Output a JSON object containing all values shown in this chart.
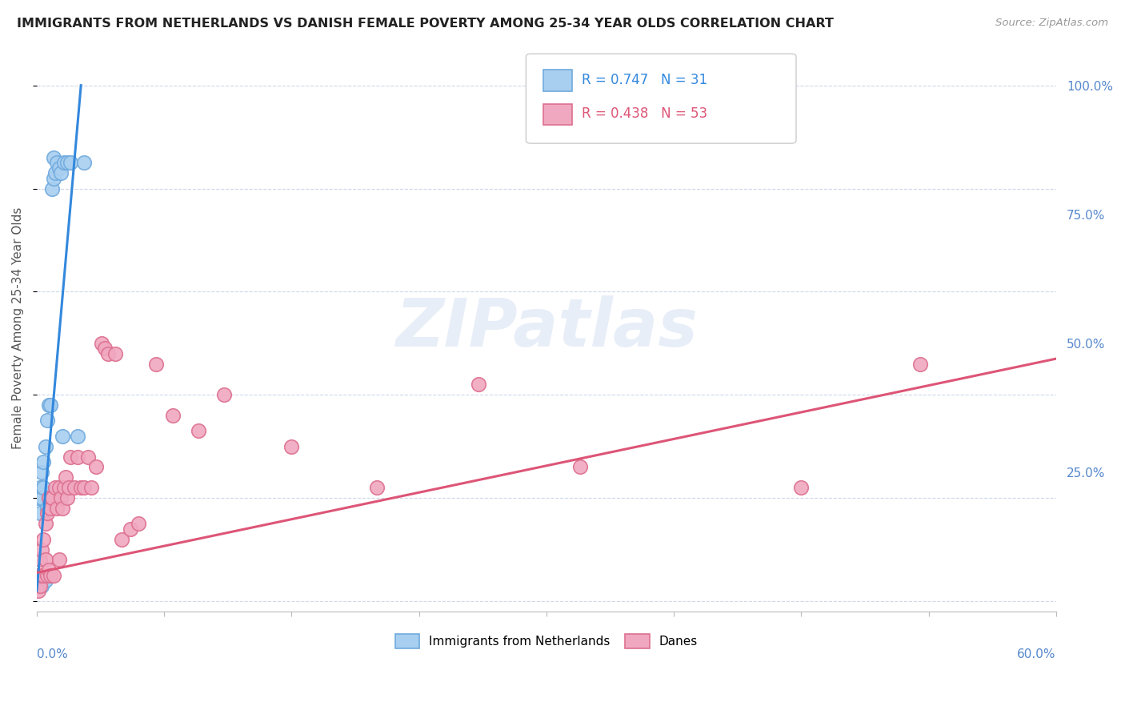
{
  "title": "IMMIGRANTS FROM NETHERLANDS VS DANISH FEMALE POVERTY AMONG 25-34 YEAR OLDS CORRELATION CHART",
  "source": "Source: ZipAtlas.com",
  "ylabel": "Female Poverty Among 25-34 Year Olds",
  "color_blue": "#a8cff0",
  "color_pink": "#f0a8c0",
  "color_blue_edge": "#70aadd",
  "color_pink_edge": "#dd7090",
  "color_blue_line": "#3388dd",
  "color_pink_line": "#dd5577",
  "watermark_color": "#e8eef8",
  "watermark_text": "ZIPatlas",
  "xlim": [
    0.0,
    0.6
  ],
  "ylim": [
    -0.02,
    1.08
  ],
  "yticks": [
    0.0,
    0.25,
    0.5,
    0.75,
    1.0
  ],
  "ytick_labels": [
    "",
    "25.0%",
    "50.0%",
    "75.0%",
    "100.0%"
  ],
  "blue_line_x0": 0.0,
  "blue_line_y0": 0.02,
  "blue_line_x1": 0.026,
  "blue_line_y1": 1.0,
  "pink_line_x0": 0.0,
  "pink_line_y0": 0.055,
  "pink_line_x1": 0.6,
  "pink_line_y1": 0.47,
  "blue_x": [
    0.001,
    0.001,
    0.001,
    0.002,
    0.002,
    0.002,
    0.003,
    0.003,
    0.003,
    0.004,
    0.004,
    0.005,
    0.005,
    0.006,
    0.006,
    0.007,
    0.007,
    0.008,
    0.009,
    0.01,
    0.01,
    0.011,
    0.012,
    0.013,
    0.014,
    0.015,
    0.016,
    0.018,
    0.02,
    0.024,
    0.028
  ],
  "blue_y": [
    0.03,
    0.05,
    0.2,
    0.04,
    0.17,
    0.22,
    0.03,
    0.2,
    0.25,
    0.22,
    0.27,
    0.04,
    0.3,
    0.18,
    0.35,
    0.2,
    0.38,
    0.38,
    0.8,
    0.82,
    0.86,
    0.83,
    0.85,
    0.84,
    0.83,
    0.32,
    0.85,
    0.85,
    0.85,
    0.32,
    0.85
  ],
  "pink_x": [
    0.001,
    0.001,
    0.002,
    0.002,
    0.003,
    0.003,
    0.004,
    0.004,
    0.005,
    0.005,
    0.006,
    0.006,
    0.007,
    0.007,
    0.008,
    0.008,
    0.009,
    0.01,
    0.011,
    0.012,
    0.013,
    0.013,
    0.014,
    0.015,
    0.016,
    0.017,
    0.018,
    0.019,
    0.02,
    0.022,
    0.024,
    0.026,
    0.028,
    0.03,
    0.032,
    0.035,
    0.038,
    0.04,
    0.042,
    0.046,
    0.05,
    0.055,
    0.06,
    0.07,
    0.08,
    0.095,
    0.11,
    0.15,
    0.2,
    0.26,
    0.32,
    0.45,
    0.52
  ],
  "pink_y": [
    0.02,
    0.05,
    0.03,
    0.08,
    0.05,
    0.1,
    0.05,
    0.12,
    0.08,
    0.15,
    0.05,
    0.17,
    0.06,
    0.2,
    0.05,
    0.18,
    0.2,
    0.05,
    0.22,
    0.18,
    0.22,
    0.08,
    0.2,
    0.18,
    0.22,
    0.24,
    0.2,
    0.22,
    0.28,
    0.22,
    0.28,
    0.22,
    0.22,
    0.28,
    0.22,
    0.26,
    0.5,
    0.49,
    0.48,
    0.48,
    0.12,
    0.14,
    0.15,
    0.46,
    0.36,
    0.33,
    0.4,
    0.3,
    0.22,
    0.42,
    0.26,
    0.22,
    0.46
  ]
}
